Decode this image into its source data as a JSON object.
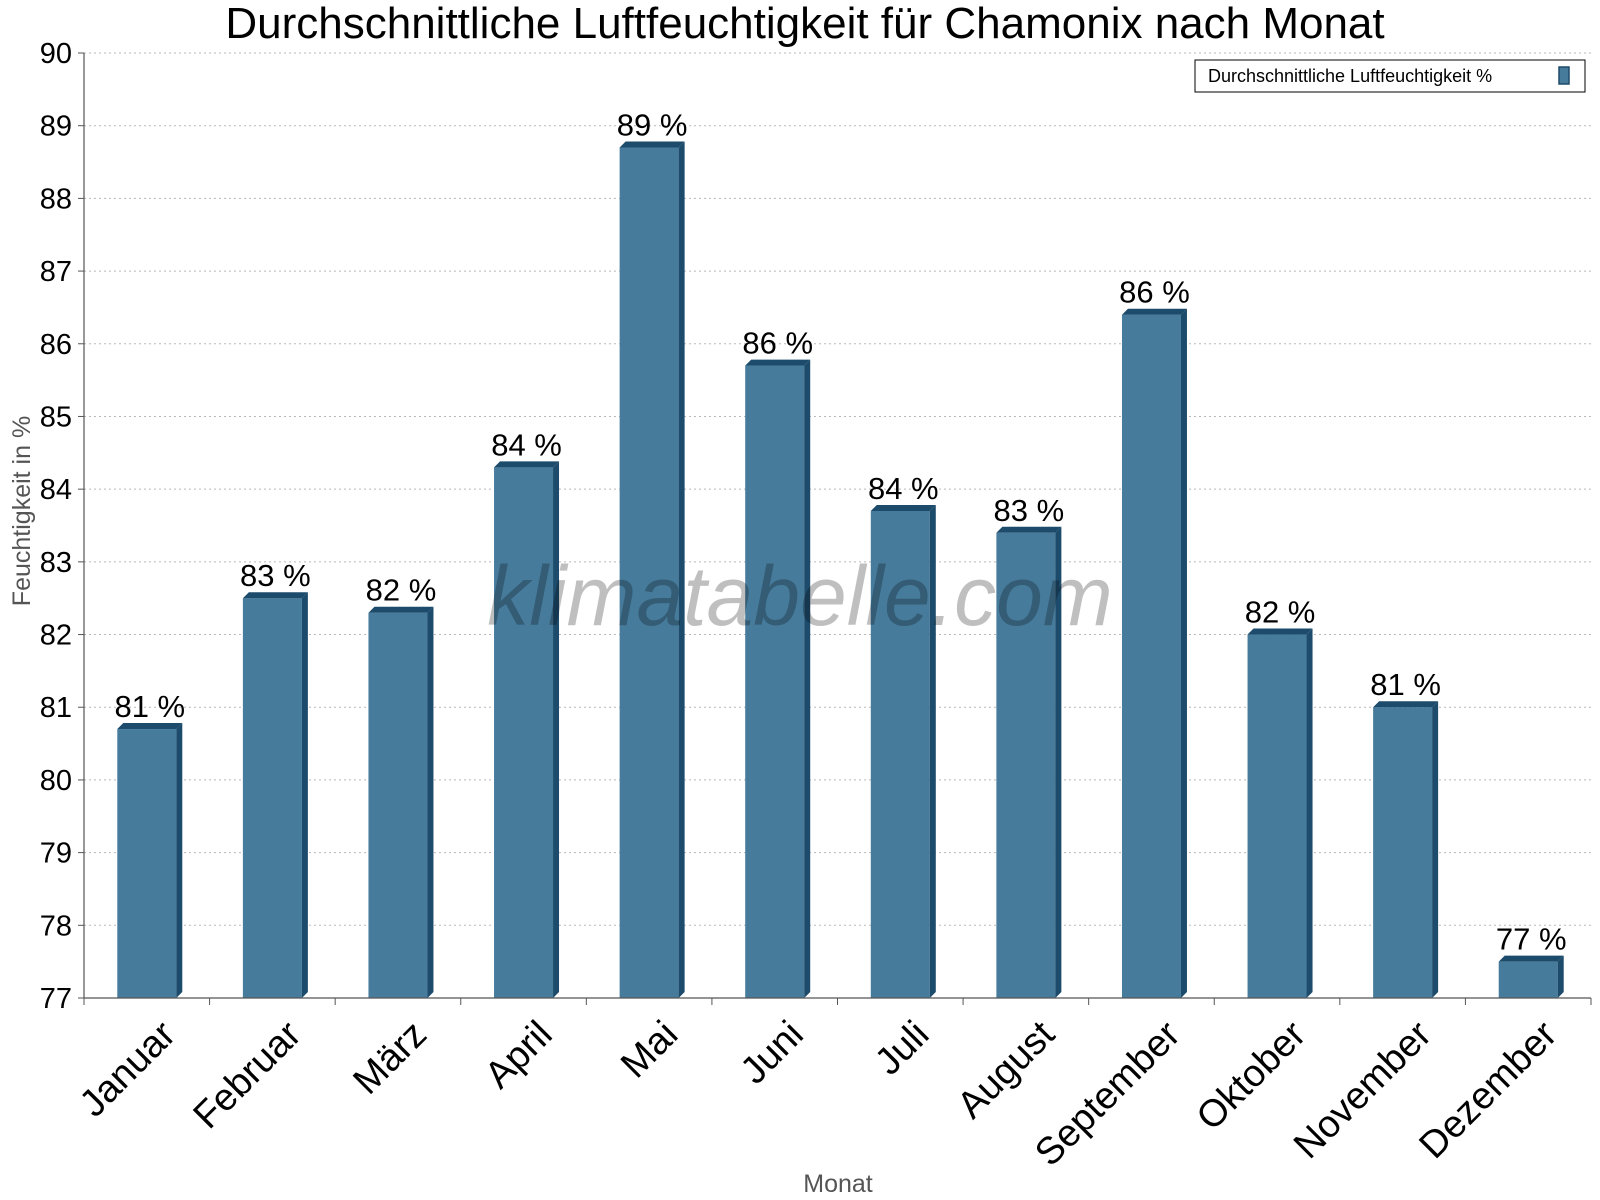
{
  "chart_data": {
    "type": "bar",
    "title": "Durchschnittliche Luftfeuchtigkeit für Chamonix nach Monat",
    "xlabel": "Monat",
    "ylabel": "Feuchtigkeit in %",
    "categories": [
      "Januar",
      "Februar",
      "März",
      "April",
      "Mai",
      "Juni",
      "Juli",
      "August",
      "September",
      "Oktober",
      "November",
      "Dezember"
    ],
    "series": [
      {
        "name": "Durchschnittliche Luftfeuchtigkeit %",
        "values": [
          80.7,
          82.5,
          82.3,
          84.3,
          88.7,
          85.7,
          83.7,
          83.4,
          86.4,
          82.0,
          81.0,
          77.5
        ],
        "labels": [
          "81 %",
          "83 %",
          "82 %",
          "84 %",
          "89 %",
          "86 %",
          "84 %",
          "83 %",
          "86 %",
          "82 %",
          "81 %",
          "77 %"
        ]
      }
    ],
    "ylim": [
      77,
      90
    ],
    "yticks": [
      77,
      78,
      79,
      80,
      81,
      82,
      83,
      84,
      85,
      86,
      87,
      88,
      89,
      90
    ],
    "grid": true,
    "legend_position": "top-right",
    "colors": {
      "bar": "#467b9c",
      "bar_dark": "#1d4b6b"
    }
  },
  "watermark": "klimatabelle.com"
}
